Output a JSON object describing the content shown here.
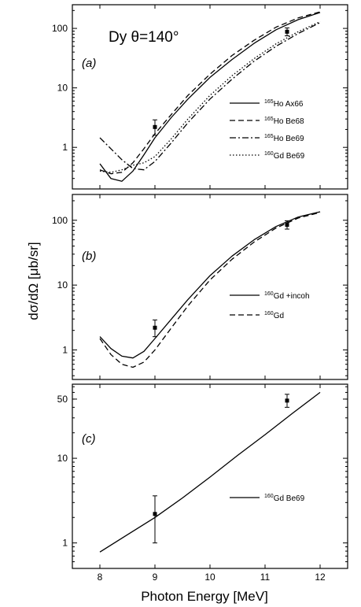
{
  "figure": {
    "ylabel": "dσ/dΩ [μb/sr]",
    "xlabel": "Photon Energy [MeV]"
  },
  "chart_data": [
    {
      "type": "line",
      "panel": "(a)",
      "title": "Dy θ=140°",
      "y_scale": "log",
      "xlim": [
        7.5,
        12.5
      ],
      "ylim": [
        0.2,
        250
      ],
      "x_ticks": [
        8,
        9,
        10,
        11,
        12
      ],
      "y_ticks": [
        1,
        10,
        100
      ],
      "y_tick_labels": [
        "1",
        "10",
        "100"
      ],
      "legend_position": "right",
      "series": [
        {
          "name": "165Ho Ax66",
          "sup": "165",
          "label": "Ho Ax66",
          "style": "solid",
          "x": [
            8.0,
            8.2,
            8.4,
            8.6,
            8.8,
            9.0,
            9.3,
            9.6,
            10.0,
            10.4,
            10.8,
            11.2,
            11.6,
            12.0
          ],
          "y": [
            0.53,
            0.3,
            0.27,
            0.4,
            0.75,
            1.45,
            3.2,
            6.5,
            15,
            30,
            56,
            95,
            140,
            185
          ]
        },
        {
          "name": "165Ho Be68",
          "sup": "165",
          "label": "Ho Be68",
          "style": "dash",
          "x": [
            8.0,
            8.2,
            8.4,
            8.6,
            8.8,
            9.0,
            9.3,
            9.6,
            10.0,
            10.4,
            10.8,
            11.2,
            11.6,
            12.0
          ],
          "y": [
            0.42,
            0.36,
            0.38,
            0.55,
            0.95,
            1.7,
            3.6,
            7.5,
            17,
            35,
            63,
            105,
            150,
            190
          ]
        },
        {
          "name": "165Ho Be69",
          "sup": "165",
          "label": "Ho Be69",
          "style": "dashdot",
          "x": [
            8.0,
            8.2,
            8.4,
            8.6,
            8.8,
            9.0,
            9.3,
            9.6,
            10.0,
            10.4,
            10.8,
            11.2,
            11.6,
            12.0
          ],
          "y": [
            1.45,
            0.95,
            0.62,
            0.44,
            0.42,
            0.58,
            1.2,
            2.6,
            6.5,
            14,
            28,
            50,
            82,
            125
          ]
        },
        {
          "name": "160Gd Be69",
          "sup": "160",
          "label": "Gd Be69",
          "style": "dot",
          "x": [
            8.0,
            8.2,
            8.4,
            8.6,
            8.8,
            9.0,
            9.3,
            9.6,
            10.0,
            10.4,
            10.8,
            11.2,
            11.6,
            12.0
          ],
          "y": [
            0.4,
            0.38,
            0.42,
            0.5,
            0.55,
            0.7,
            1.4,
            3.0,
            7.5,
            16,
            31,
            55,
            88,
            130
          ]
        }
      ],
      "points": [
        {
          "x": 9.0,
          "y": 2.2,
          "lo": 1.6,
          "hi": 2.9
        },
        {
          "x": 11.4,
          "y": 88,
          "lo": 75,
          "hi": 102
        }
      ]
    },
    {
      "type": "line",
      "panel": "(b)",
      "y_scale": "log",
      "xlim": [
        7.5,
        12.5
      ],
      "ylim": [
        0.35,
        250
      ],
      "x_ticks": [
        8,
        9,
        10,
        11,
        12
      ],
      "y_ticks": [
        1,
        10,
        100
      ],
      "y_tick_labels": [
        "1",
        "10",
        "100"
      ],
      "legend_position": "right",
      "series": [
        {
          "name": "160Gd +incoh",
          "sup": "160",
          "label": "Gd +incoh",
          "style": "solid",
          "x": [
            8.0,
            8.2,
            8.4,
            8.6,
            8.8,
            9.0,
            9.3,
            9.6,
            10.0,
            10.4,
            10.8,
            11.2,
            11.6,
            12.0
          ],
          "y": [
            1.6,
            1.05,
            0.8,
            0.75,
            0.95,
            1.5,
            3.0,
            6.0,
            14,
            28,
            50,
            80,
            112,
            135
          ]
        },
        {
          "name": "160Gd",
          "sup": "160",
          "label": "Gd",
          "style": "dash",
          "x": [
            8.0,
            8.2,
            8.4,
            8.6,
            8.8,
            9.0,
            9.3,
            9.6,
            10.0,
            10.4,
            10.8,
            11.2,
            11.6,
            12.0
          ],
          "y": [
            1.5,
            0.85,
            0.6,
            0.54,
            0.65,
            1.0,
            2.2,
            4.8,
            12,
            25,
            46,
            76,
            108,
            132
          ]
        }
      ],
      "points": [
        {
          "x": 9.0,
          "y": 2.2,
          "lo": 1.6,
          "hi": 2.9
        },
        {
          "x": 11.4,
          "y": 85,
          "lo": 73,
          "hi": 98
        }
      ]
    },
    {
      "type": "line",
      "panel": "(c)",
      "y_scale": "log",
      "xlim": [
        7.5,
        12.5
      ],
      "ylim": [
        0.5,
        75
      ],
      "x_ticks": [
        8,
        9,
        10,
        11,
        12
      ],
      "x_tick_labels": [
        "8",
        "9",
        "10",
        "11",
        "12"
      ],
      "y_ticks": [
        1,
        10,
        50
      ],
      "y_tick_labels": [
        "1",
        "10",
        "50"
      ],
      "legend_position": "right",
      "series": [
        {
          "name": "160Gd Be69",
          "sup": "160",
          "label": "Gd Be69",
          "style": "solid",
          "x": [
            8.0,
            8.5,
            9.0,
            9.5,
            10.0,
            10.5,
            11.0,
            11.5,
            12.0
          ],
          "y": [
            0.78,
            1.25,
            2.0,
            3.4,
            6.0,
            10.8,
            19,
            34,
            60
          ]
        }
      ],
      "points": [
        {
          "x": 9.0,
          "y": 2.2,
          "lo": 1.0,
          "hi": 3.6
        },
        {
          "x": 11.4,
          "y": 48,
          "lo": 40,
          "hi": 57
        }
      ]
    }
  ]
}
